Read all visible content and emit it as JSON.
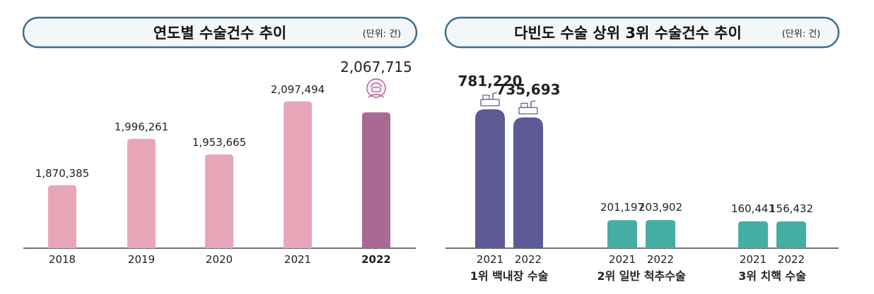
{
  "left_panel": {
    "title": "연도별 수술건수 추이",
    "unit": "(단위: 건)"
  },
  "right_panel": {
    "title": "다빈도 수술 상위 3위 수술건수 추이",
    "unit": "(단위: 건)"
  },
  "chart_data": [
    {
      "type": "bar",
      "title": "연도별 수술건수 추이",
      "categories": [
        "2018",
        "2019",
        "2020",
        "2021",
        "2022"
      ],
      "values": [
        1870385,
        1996261,
        1953665,
        2097494,
        2067715
      ],
      "value_labels": [
        "1,870,385",
        "1,996,261",
        "1,953,665",
        "2,097,494",
        "2,067,715"
      ],
      "highlight": "2022",
      "colors": {
        "bar": "#e8a6b9",
        "highlight": "#a86a93",
        "highlight_label": "#b05c99"
      },
      "icon": "surgeon-icon"
    },
    {
      "type": "bar",
      "title": "다빈도 수술 상위 3위 수술건수 추이",
      "groups": [
        {
          "label": "1위 백내장 수술",
          "color": "#5e5a96",
          "label_color": "#5a4f8f",
          "bars": [
            {
              "year": "2021",
              "value": 781220,
              "label": "781,220"
            },
            {
              "year": "2022",
              "value": 735693,
              "label": "735,693"
            }
          ]
        },
        {
          "label": "2위 일반 척추수술",
          "color": "#45aea3",
          "label_color": "#3aa597",
          "bars": [
            {
              "year": "2021",
              "value": 201197,
              "label": "201,197"
            },
            {
              "year": "2022",
              "value": 203902,
              "label": "203,902"
            }
          ]
        },
        {
          "label": "3위 치핵 수술",
          "color": "#45aea3",
          "label_color": "#3aa597",
          "bars": [
            {
              "year": "2021",
              "value": 160441,
              "label": "160,441"
            },
            {
              "year": "2022",
              "value": 156432,
              "label": "156,432"
            }
          ]
        }
      ],
      "icon": "surgical-equipment-icon"
    }
  ]
}
